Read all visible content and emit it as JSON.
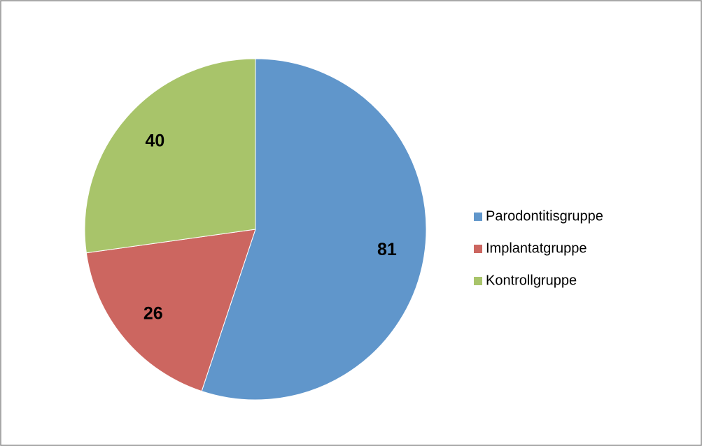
{
  "chart_data": {
    "type": "pie",
    "categories": [
      "Parodontitisgruppe",
      "Implantatgruppe",
      "Kontrollgruppe"
    ],
    "values": [
      81,
      26,
      40
    ],
    "colors": [
      "#6096cb",
      "#cc6660",
      "#a8c46a"
    ]
  }
}
